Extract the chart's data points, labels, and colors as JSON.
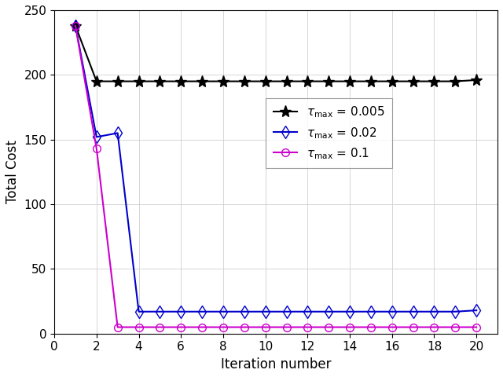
{
  "title": "",
  "xlabel": "Iteration number",
  "ylabel": "Total Cost",
  "xlim": [
    0.5,
    21
  ],
  "ylim": [
    0,
    250
  ],
  "xticks": [
    0,
    2,
    4,
    6,
    8,
    10,
    12,
    14,
    16,
    18,
    20
  ],
  "yticks": [
    0,
    50,
    100,
    150,
    200,
    250
  ],
  "series": [
    {
      "label_tau": "0.005",
      "color": "#000000",
      "marker": "*",
      "markersize": 11,
      "markerfacecolor": "#000000",
      "x": [
        1,
        2,
        3,
        4,
        5,
        6,
        7,
        8,
        9,
        10,
        11,
        12,
        13,
        14,
        15,
        16,
        17,
        18,
        19,
        20
      ],
      "y": [
        238,
        195,
        195,
        195,
        195,
        195,
        195,
        195,
        195,
        195,
        195,
        195,
        195,
        195,
        195,
        195,
        195,
        195,
        195,
        196
      ]
    },
    {
      "label_tau": "0.02",
      "color": "#0000CC",
      "marker": "d",
      "markersize": 8,
      "markerfacecolor": "none",
      "x": [
        1,
        2,
        3,
        4,
        5,
        6,
        7,
        8,
        9,
        10,
        11,
        12,
        13,
        14,
        15,
        16,
        17,
        18,
        19,
        20
      ],
      "y": [
        238,
        152,
        155,
        17,
        17,
        17,
        17,
        17,
        17,
        17,
        17,
        17,
        17,
        17,
        17,
        17,
        17,
        17,
        17,
        18
      ]
    },
    {
      "label_tau": "0.1",
      "color": "#CC00CC",
      "marker": "o",
      "markersize": 7,
      "markerfacecolor": "none",
      "x": [
        1,
        2,
        3,
        4,
        5,
        6,
        7,
        8,
        9,
        10,
        11,
        12,
        13,
        14,
        15,
        16,
        17,
        18,
        19,
        20
      ],
      "y": [
        238,
        143,
        5,
        5,
        5,
        5,
        5,
        5,
        5,
        5,
        5,
        5,
        5,
        5,
        5,
        5,
        5,
        5,
        5,
        5
      ]
    }
  ],
  "background_color": "#ffffff",
  "grid_color": "#d0d0d0",
  "grid": true,
  "linewidth": 1.5,
  "xlabel_fontsize": 12,
  "ylabel_fontsize": 12,
  "tick_fontsize": 11,
  "legend_fontsize": 11
}
